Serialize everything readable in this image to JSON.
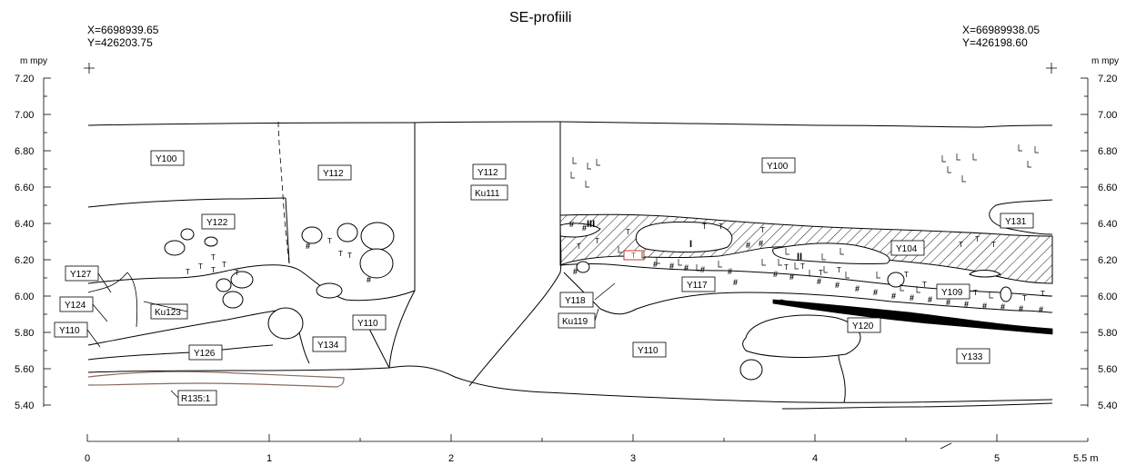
{
  "title": "SE-profiili",
  "coords": {
    "left_x": "X=6698939.65",
    "left_y": "Y=426203.75",
    "right_x": "X=66989938.05",
    "right_y": "Y=426198.60"
  },
  "vertical_axis": {
    "unit": "m mpy",
    "ticks": [
      "7.20",
      "7.00",
      "6.80",
      "6.60",
      "6.40",
      "6.20",
      "6.00",
      "5.80",
      "5.60",
      "5.40"
    ]
  },
  "horizontal_axis": {
    "ticks": [
      "0",
      "1",
      "2",
      "3",
      "4",
      "5"
    ],
    "end_label": "5.5 m"
  },
  "layers": [
    "Y100",
    "Y112",
    "Y112",
    "Ku111",
    "Y100",
    "Y122",
    "Y131",
    "Y104",
    "Y127",
    "Y124",
    "Ku123",
    "Y110",
    "Y110",
    "Y118",
    "Ku119",
    "Y117",
    "Y109",
    "Y120",
    "Y134",
    "Y126",
    "Y110",
    "Y133",
    "R135:1"
  ],
  "sample_marks": [
    "III",
    "I",
    "II",
    "T",
    "#"
  ],
  "colors": {
    "ink": "#000000",
    "highlight": "#c0392b",
    "root": "#8b6b5a"
  }
}
